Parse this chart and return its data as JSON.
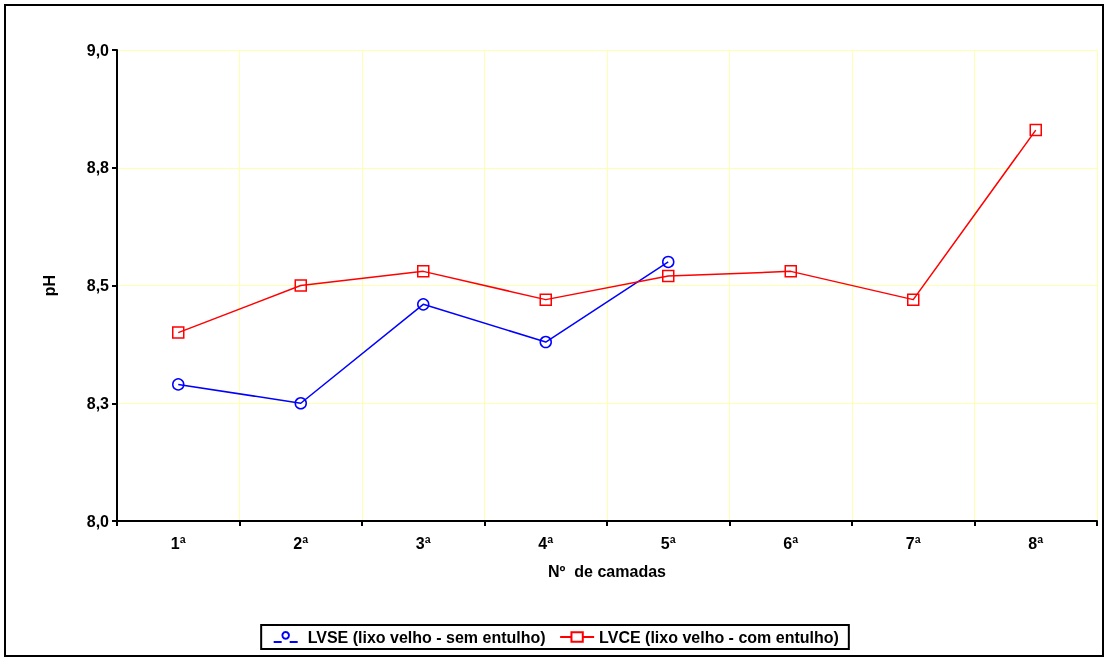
{
  "chart_data": {
    "type": "line",
    "xlabel": "Nº  de camadas",
    "ylabel": "pH",
    "categories": [
      "1ª",
      "2ª",
      "3ª",
      "4ª",
      "5ª",
      "6ª",
      "7ª",
      "8ª"
    ],
    "series": [
      {
        "name": "LVSE (lixo velho - sem entulho)",
        "color": "#0000ff",
        "marker": "circle",
        "values": [
          8.29,
          8.25,
          8.46,
          8.38,
          8.55,
          null,
          null,
          null
        ]
      },
      {
        "name": "LVCE (lixo velho - com entulho)",
        "color": "#ff0000",
        "marker": "square",
        "values": [
          8.4,
          8.5,
          8.53,
          8.47,
          8.52,
          8.53,
          8.47,
          8.83
        ]
      }
    ],
    "ylim": [
      8.0,
      9.0
    ],
    "yticks": [
      {
        "value": 8.0,
        "label": "8,0"
      },
      {
        "value": 8.25,
        "label": "8,3"
      },
      {
        "value": 8.5,
        "label": "8,5"
      },
      {
        "value": 8.75,
        "label": "8,8"
      },
      {
        "value": 9.0,
        "label": "9,0"
      }
    ],
    "grid": true,
    "legend": "bottom",
    "line_style": "solid"
  }
}
